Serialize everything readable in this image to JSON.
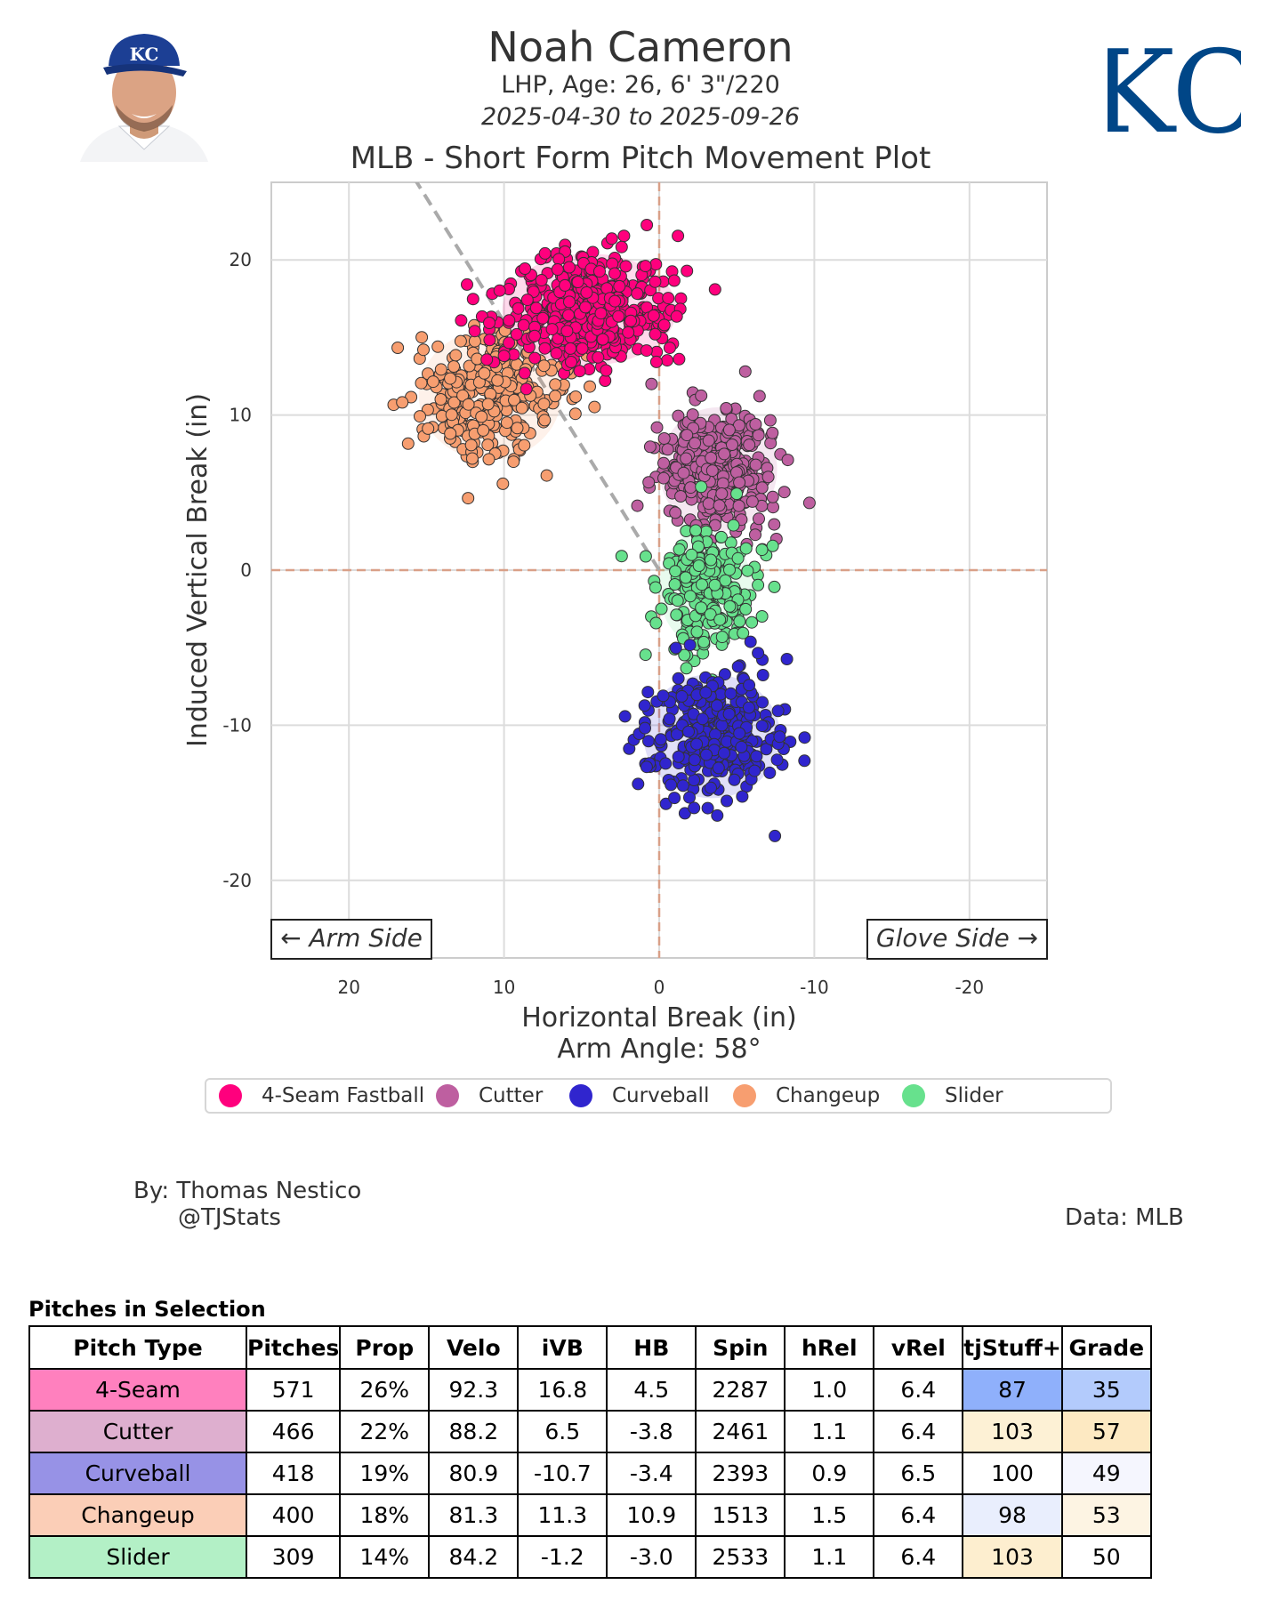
{
  "header": {
    "player_name": "Noah Cameron",
    "player_info": "LHP, Age: 26, 6' 3\"/220",
    "date_range": "2025-04-30 to 2025-09-26",
    "chart_title": "MLB - Short Form Pitch Movement Plot"
  },
  "team": {
    "logo_text": "KC",
    "logo_color": "#004687"
  },
  "chart_data": {
    "type": "scatter",
    "title": "MLB - Short Form Pitch Movement Plot",
    "xlabel": "Horizontal Break (in)",
    "ylabel": "Induced Vertical Break (in)",
    "subtitle": "Arm Angle: 58°",
    "xlim": [
      25,
      -25
    ],
    "ylim": [
      -25,
      25
    ],
    "x_ticks": [
      "20",
      "10",
      "0",
      "-10",
      "-20"
    ],
    "y_ticks": [
      "20",
      "10",
      "0",
      "-10",
      "-20"
    ],
    "grid": true,
    "x_reversed": true,
    "arm_side_label": "← Arm Side",
    "glove_side_label": "Glove Side →",
    "arm_angle_line": {
      "angle_deg": 58
    },
    "series": [
      {
        "name": "4-Seam Fastball",
        "color": "#ff007d",
        "count": 571,
        "center": [
          4.5,
          16.8
        ],
        "spread": [
          2.8,
          1.8
        ]
      },
      {
        "name": "Cutter",
        "color": "#be5fa0",
        "count": 466,
        "center": [
          -3.8,
          6.5
        ],
        "spread": [
          1.9,
          2.0
        ]
      },
      {
        "name": "Curveball",
        "color": "#3025ce",
        "count": 418,
        "center": [
          -3.4,
          -10.7
        ],
        "spread": [
          2.2,
          2.0
        ]
      },
      {
        "name": "Changeup",
        "color": "#f79e70",
        "count": 400,
        "center": [
          10.9,
          11.3
        ],
        "spread": [
          2.3,
          2.1
        ]
      },
      {
        "name": "Slider",
        "color": "#67e18d",
        "count": 309,
        "center": [
          -3.0,
          -1.2
        ],
        "spread": [
          1.5,
          1.9
        ]
      }
    ]
  },
  "credits": {
    "by": "By: Thomas Nestico",
    "handle": "@TJStats",
    "data": "Data: MLB"
  },
  "table": {
    "title": "Pitches in Selection",
    "headers": [
      "Pitch Type",
      "Pitches",
      "Prop",
      "Velo",
      "iVB",
      "HB",
      "Spin",
      "hRel",
      "vRel",
      "tjStuff+",
      "Grade"
    ],
    "rows": [
      {
        "cells": [
          "4-Seam",
          "571",
          "26%",
          "92.3",
          "16.8",
          "4.5",
          "2287",
          "1.0",
          "6.4",
          "87",
          "35"
        ],
        "type_color": "#ff80be",
        "stuff_color": "#8fb0fb",
        "grade_color": "#b3cbfc"
      },
      {
        "cells": [
          "Cutter",
          "466",
          "22%",
          "88.2",
          "6.5",
          "-3.8",
          "2461",
          "1.1",
          "6.4",
          "103",
          "57"
        ],
        "type_color": "#deafcf",
        "stuff_color": "#fdf1d5",
        "grade_color": "#fde9c2"
      },
      {
        "cells": [
          "Curveball",
          "418",
          "19%",
          "80.9",
          "-10.7",
          "-3.4",
          "2393",
          "0.9",
          "6.5",
          "100",
          "49"
        ],
        "type_color": "#9792e6",
        "stuff_color": "#ffffff",
        "grade_color": "#f5f6fe"
      },
      {
        "cells": [
          "Changeup",
          "400",
          "18%",
          "81.3",
          "11.3",
          "10.9",
          "1513",
          "1.5",
          "6.4",
          "98",
          "53"
        ],
        "type_color": "#fbceb7",
        "stuff_color": "#e9eefd",
        "grade_color": "#fdf4e3"
      },
      {
        "cells": [
          "Slider",
          "309",
          "14%",
          "84.2",
          "-1.2",
          "-3.0",
          "2533",
          "1.1",
          "6.4",
          "103",
          "50"
        ],
        "type_color": "#b3f0c6",
        "stuff_color": "#fdeecf",
        "grade_color": "#ffffff"
      }
    ]
  }
}
